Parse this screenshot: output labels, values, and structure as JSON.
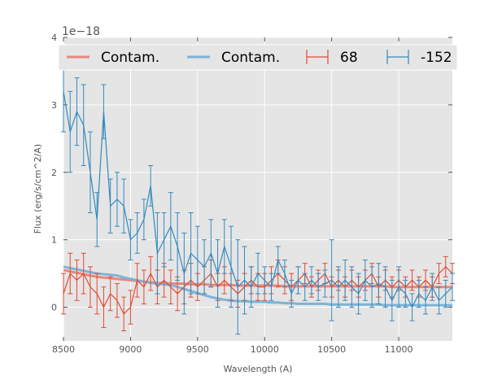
{
  "chart_data": {
    "type": "line",
    "title": "",
    "xlabel": "Wavelength (A)",
    "ylabel": "Flux (erg/s/cm^2/A)",
    "y_offset_label": "1e−18",
    "xlim": [
      8500,
      11400
    ],
    "ylim": [
      -0.5,
      4
    ],
    "xticks": [
      8500,
      9000,
      9500,
      10000,
      10500,
      11000
    ],
    "yticks": [
      0,
      1,
      2,
      3,
      4
    ],
    "grid": true,
    "legend_position": "top",
    "colors": {
      "red": "#e24a33",
      "blue": "#348abd",
      "red_light": "#e8897a",
      "blue_light": "#7eb3d6",
      "bg": "#e5e5e5"
    },
    "x": [
      8500,
      8550,
      8600,
      8650,
      8700,
      8750,
      8800,
      8850,
      8900,
      8950,
      9000,
      9050,
      9100,
      9150,
      9200,
      9250,
      9300,
      9350,
      9400,
      9450,
      9500,
      9550,
      9600,
      9650,
      9700,
      9750,
      9800,
      9850,
      9900,
      9950,
      10000,
      10050,
      10100,
      10150,
      10200,
      10250,
      10300,
      10350,
      10400,
      10450,
      10500,
      10550,
      10600,
      10650,
      10700,
      10750,
      10800,
      10850,
      10900,
      10950,
      11000,
      11050,
      11100,
      11150,
      11200,
      11250,
      11300,
      11350,
      11400
    ],
    "series": [
      {
        "name": "Contam.",
        "kind": "line",
        "color": "red_light",
        "values": [
          0.55,
          0.53,
          0.51,
          0.49,
          0.47,
          0.45,
          0.44,
          0.43,
          0.42,
          0.41,
          0.4,
          0.39,
          0.38,
          0.37,
          0.36,
          0.36,
          0.35,
          0.35,
          0.35,
          0.34,
          0.34,
          0.34,
          0.33,
          0.33,
          0.33,
          0.33,
          0.32,
          0.32,
          0.32,
          0.32,
          0.32,
          0.32,
          0.32,
          0.31,
          0.31,
          0.31,
          0.31,
          0.31,
          0.31,
          0.31,
          0.31,
          0.31,
          0.31,
          0.31,
          0.31,
          0.31,
          0.31,
          0.31,
          0.31,
          0.3,
          0.3,
          0.3,
          0.3,
          0.3,
          0.3,
          0.3,
          0.3,
          0.3,
          0.3
        ]
      },
      {
        "name": "Contam.",
        "kind": "line",
        "color": "blue_light",
        "values": [
          0.6,
          0.58,
          0.56,
          0.54,
          0.52,
          0.5,
          0.49,
          0.48,
          0.47,
          0.44,
          0.42,
          0.4,
          0.38,
          0.36,
          0.35,
          0.34,
          0.33,
          0.3,
          0.27,
          0.24,
          0.21,
          0.18,
          0.15,
          0.13,
          0.11,
          0.1,
          0.09,
          0.09,
          0.08,
          0.08,
          0.08,
          0.07,
          0.07,
          0.06,
          0.06,
          0.05,
          0.05,
          0.05,
          0.05,
          0.05,
          0.04,
          0.04,
          0.04,
          0.04,
          0.04,
          0.04,
          0.04,
          0.04,
          0.03,
          0.03,
          0.03,
          0.03,
          0.03,
          0.03,
          0.03,
          0.03,
          0.03,
          0.03,
          0.03
        ]
      },
      {
        "name": "68",
        "kind": "errorbar",
        "color": "red",
        "values": [
          0.2,
          0.5,
          0.4,
          0.5,
          0.3,
          0.2,
          0.0,
          0.2,
          0.1,
          -0.1,
          0.0,
          0.4,
          0.3,
          0.5,
          0.3,
          0.4,
          0.3,
          0.2,
          0.3,
          0.4,
          0.3,
          0.4,
          0.5,
          0.3,
          0.4,
          0.3,
          0.2,
          0.3,
          0.4,
          0.3,
          0.3,
          0.4,
          0.5,
          0.4,
          0.3,
          0.4,
          0.5,
          0.3,
          0.4,
          0.5,
          0.3,
          0.4,
          0.3,
          0.4,
          0.3,
          0.4,
          0.5,
          0.3,
          0.4,
          0.3,
          0.4,
          0.3,
          0.4,
          0.3,
          0.4,
          0.3,
          0.5,
          0.6,
          0.5
        ],
        "errors": [
          0.3,
          0.3,
          0.3,
          0.3,
          0.3,
          0.3,
          0.3,
          0.25,
          0.25,
          0.25,
          0.25,
          0.25,
          0.25,
          0.25,
          0.25,
          0.25,
          0.25,
          0.25,
          0.25,
          0.25,
          0.2,
          0.2,
          0.2,
          0.2,
          0.2,
          0.2,
          0.2,
          0.2,
          0.2,
          0.2,
          0.2,
          0.2,
          0.2,
          0.2,
          0.2,
          0.2,
          0.15,
          0.15,
          0.15,
          0.15,
          0.15,
          0.15,
          0.15,
          0.15,
          0.15,
          0.15,
          0.15,
          0.15,
          0.15,
          0.15,
          0.15,
          0.15,
          0.15,
          0.15,
          0.15,
          0.15,
          0.15,
          0.15,
          0.15
        ]
      },
      {
        "name": "-152",
        "kind": "errorbar",
        "color": "blue",
        "values": [
          3.2,
          2.6,
          2.9,
          2.7,
          2.0,
          1.3,
          2.9,
          1.5,
          1.6,
          1.5,
          1.0,
          1.1,
          1.3,
          1.8,
          0.8,
          1.0,
          1.2,
          0.9,
          0.5,
          0.8,
          0.7,
          0.6,
          0.8,
          0.5,
          0.9,
          0.6,
          0.3,
          0.4,
          0.3,
          0.5,
          0.4,
          0.3,
          0.7,
          0.5,
          0.2,
          0.4,
          0.3,
          0.4,
          0.3,
          0.35,
          0.4,
          0.3,
          0.4,
          0.3,
          0.2,
          0.4,
          0.3,
          0.35,
          0.3,
          0.1,
          0.3,
          0.2,
          0.0,
          0.2,
          0.1,
          0.3,
          0.1,
          0.2,
          0.3
        ],
        "errors": [
          0.6,
          0.6,
          0.5,
          0.6,
          0.6,
          0.4,
          0.4,
          0.4,
          0.4,
          0.4,
          0.3,
          0.3,
          0.3,
          0.3,
          0.6,
          0.4,
          0.5,
          0.5,
          0.6,
          0.6,
          0.5,
          0.4,
          0.5,
          0.5,
          0.4,
          0.6,
          0.7,
          0.5,
          0.3,
          0.3,
          0.2,
          0.2,
          0.2,
          0.2,
          0.2,
          0.2,
          0.2,
          0.2,
          0.2,
          0.2,
          0.6,
          0.3,
          0.3,
          0.3,
          0.3,
          0.3,
          0.3,
          0.3,
          0.3,
          0.3,
          0.3,
          0.2,
          0.2,
          0.2,
          0.2,
          0.2,
          0.2,
          0.2,
          0.2
        ]
      }
    ]
  }
}
